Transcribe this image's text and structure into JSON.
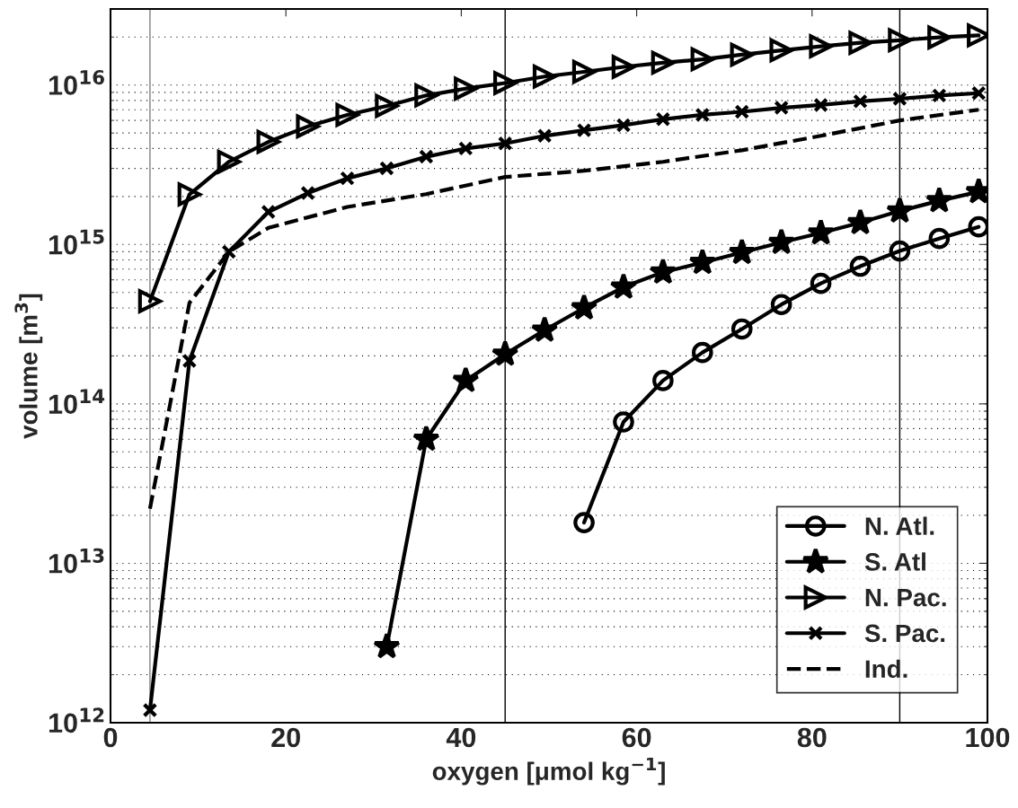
{
  "chart_data": {
    "type": "line",
    "xlabel": "oxygen [μmol kg$^{−1}$]",
    "ylabel": "volume [m$^{3}$]",
    "log": "y",
    "xlim": [
      0,
      100
    ],
    "xticks": [
      0,
      20,
      40,
      60,
      80,
      100
    ],
    "ylim": [
      1000000000000.0,
      3e+16
    ],
    "yticks": [
      {
        "value": 1000000000000.0,
        "label": "10$^{12}$"
      },
      {
        "value": 10000000000000.0,
        "label": "10$^{13}$"
      },
      {
        "value": 100000000000000.0,
        "label": "10$^{14}$"
      },
      {
        "value": 1000000000000000.0,
        "label": "10$^{15}$"
      },
      {
        "value": 1e+16,
        "label": "10$^{16}$"
      }
    ],
    "grid": "y",
    "legend": "bottom right",
    "ref_lines": [
      {
        "axis": "x",
        "value": 4.5,
        "color": "#808080"
      },
      {
        "axis": "x",
        "value": 45,
        "color": "#000000"
      },
      {
        "axis": "x",
        "value": 90,
        "color": "#000000"
      }
    ],
    "series": [
      {
        "name": "N. Atl.",
        "color": "#000000",
        "marker": "circle",
        "line_style": "solid",
        "x": [
          54,
          58.5,
          63,
          67.5,
          72,
          76.5,
          81,
          85.5,
          90,
          94.5,
          99
        ],
        "values": [
          18000000000000.0,
          77000000000000.0,
          140000000000000.0,
          210000000000000.0,
          295000000000000.0,
          420000000000000.0,
          570000000000000.0,
          730000000000000.0,
          910000000000000.0,
          1090000000000000.0,
          1290000000000000.0
        ]
      },
      {
        "name": "S. Atl",
        "color": "#000000",
        "marker": "star",
        "line_style": "solid",
        "x": [
          31.5,
          36,
          40.5,
          45,
          49.5,
          54,
          58.5,
          63,
          67.5,
          72,
          76.5,
          81,
          85.5,
          90,
          94.5,
          99
        ],
        "values": [
          3000000000000.0,
          60000000000000.0,
          140000000000000.0,
          205000000000000.0,
          290000000000000.0,
          400000000000000.0,
          540000000000000.0,
          670000000000000.0,
          770000000000000.0,
          890000000000000.0,
          1030000000000000.0,
          1180000000000000.0,
          1370000000000000.0,
          1620000000000000.0,
          1880000000000000.0,
          2140000000000000.0
        ]
      },
      {
        "name": "N. Pac.",
        "color": "#000000",
        "marker": "triangle",
        "line_style": "solid",
        "x": [
          4.5,
          9,
          13.5,
          18,
          22.5,
          27,
          31.5,
          36,
          40.5,
          45,
          49.5,
          54,
          58.5,
          63,
          67.5,
          72,
          76.5,
          81,
          85.5,
          90,
          94.5,
          99
        ],
        "values": [
          440000000000000.0,
          2060000000000000.0,
          3300000000000000.0,
          4400000000000000.0,
          5500000000000000.0,
          6500000000000000.0,
          7400000000000000.0,
          8600000000000000.0,
          9500000000000000.0,
          1.03e+16,
          1.13e+16,
          1.21e+16,
          1.3e+16,
          1.38e+16,
          1.45e+16,
          1.55e+16,
          1.65e+16,
          1.75e+16,
          1.84e+16,
          1.91e+16,
          1.99e+16,
          2.05e+16
        ]
      },
      {
        "name": "S. Pac.",
        "color": "#000000",
        "marker": "cross",
        "line_style": "solid",
        "x": [
          4.5,
          9,
          13.5,
          18,
          22.5,
          27,
          31.5,
          36,
          40.5,
          45,
          49.5,
          54,
          58.5,
          63,
          67.5,
          72,
          76.5,
          81,
          85.5,
          90,
          94.5,
          99
        ],
        "values": [
          1200000000000.0,
          186000000000000.0,
          900000000000000.0,
          1600000000000000.0,
          2100000000000000.0,
          2600000000000000.0,
          3000000000000000.0,
          3550000000000000.0,
          4000000000000000.0,
          4300000000000000.0,
          4800000000000000.0,
          5200000000000000.0,
          5600000000000000.0,
          6100000000000000.0,
          6500000000000000.0,
          6800000000000000.0,
          7200000000000000.0,
          7500000000000000.0,
          7900000000000000.0,
          8200000000000000.0,
          8600000000000000.0,
          8900000000000000.0
        ]
      },
      {
        "name": "Ind.",
        "color": "#000000",
        "marker": "none",
        "line_style": "dashed",
        "x": [
          4.5,
          6.8,
          9,
          13.5,
          18,
          27,
          36,
          45,
          54,
          63,
          72,
          81,
          90,
          99
        ],
        "values": [
          22000000000000.0,
          100000000000000.0,
          430000000000000.0,
          900000000000000.0,
          1270000000000000.0,
          1720000000000000.0,
          2070000000000000.0,
          2650000000000000.0,
          2900000000000000.0,
          3300000000000000.0,
          3900000000000000.0,
          4800000000000000.0,
          6000000000000000.0,
          7000000000000000.0
        ]
      }
    ]
  }
}
